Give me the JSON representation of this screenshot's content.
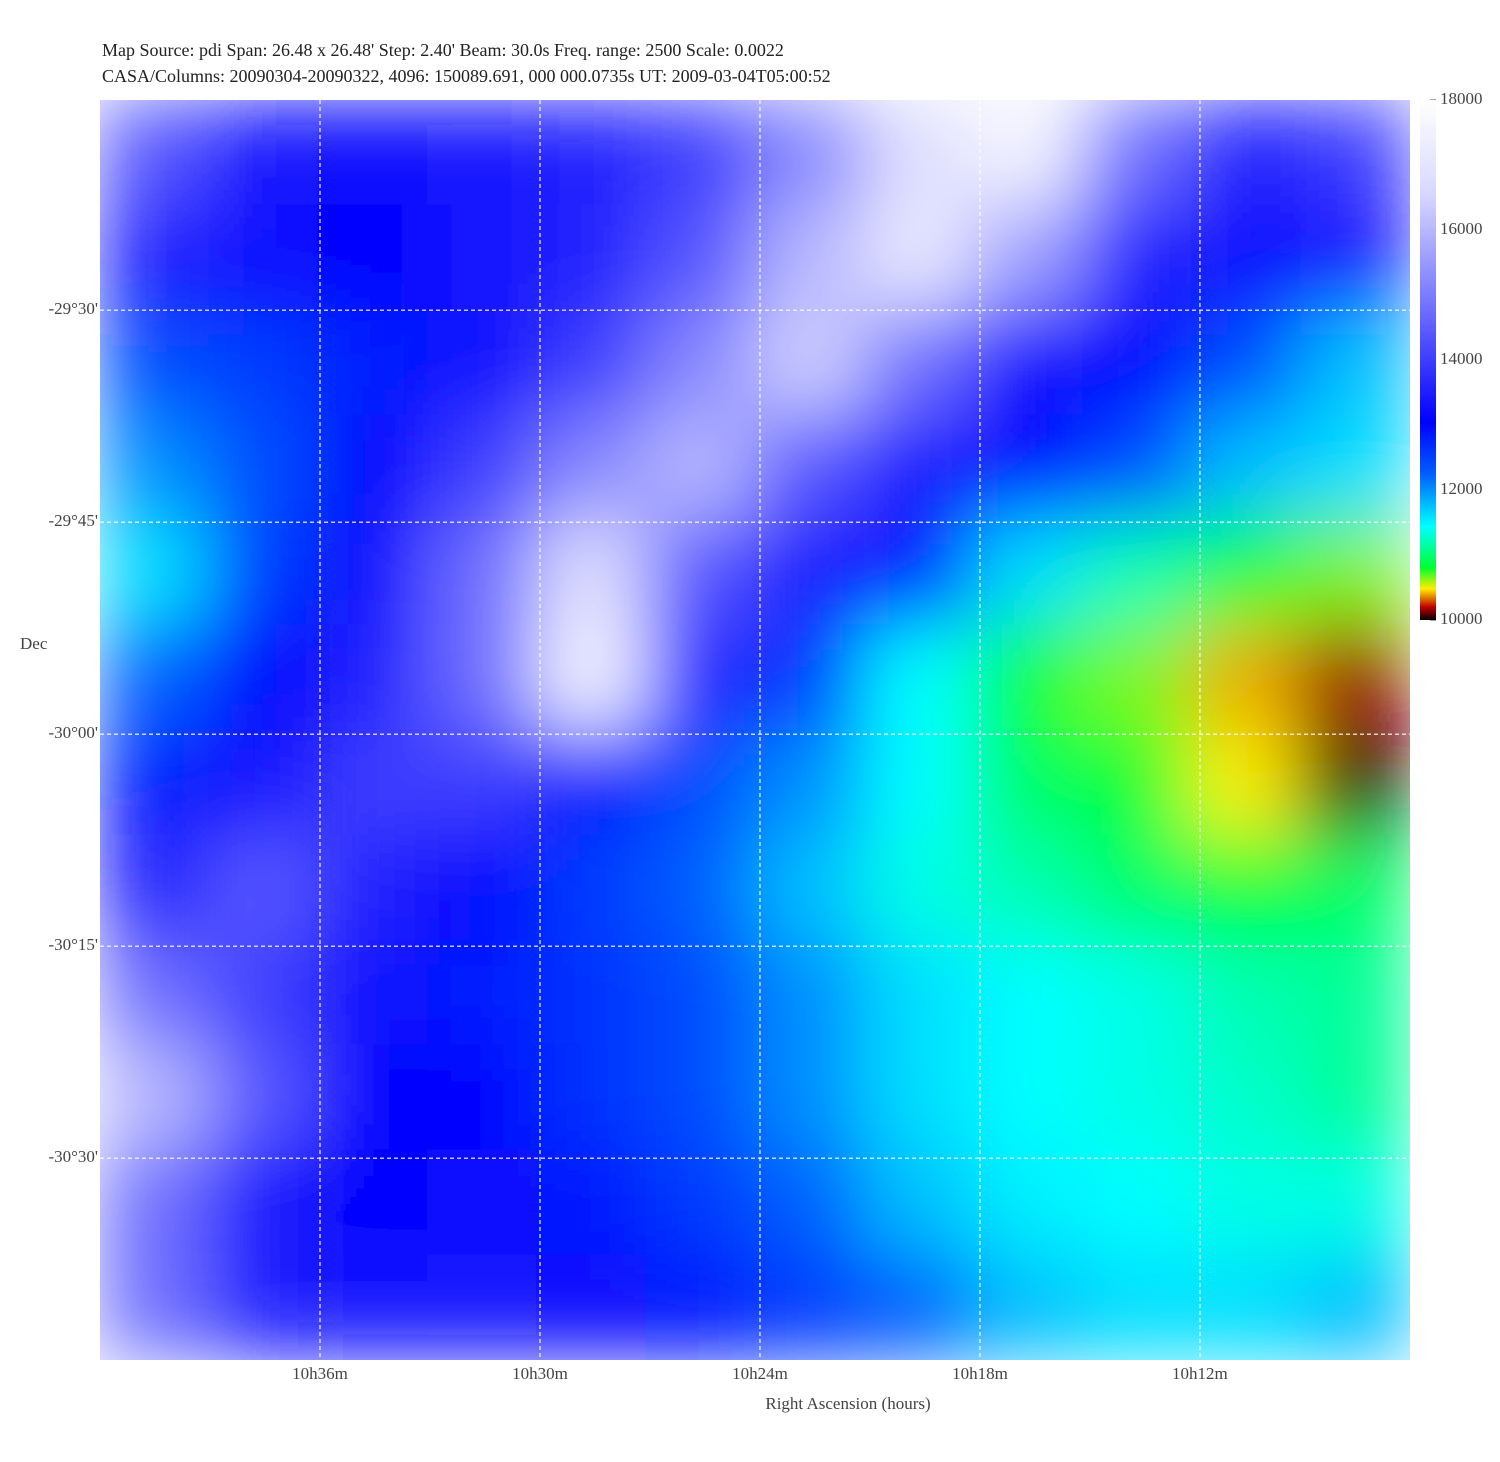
{
  "chart_data": {
    "type": "heatmap",
    "title": "Map Source: pdi     Span: 26.48 x 26.48'     Step: 2.40'     Beam: 30.0s     Freq. range: 2500     Scale: 0.0022",
    "subtitle": "CASA/Columns: 20090304-20090322, 4096: 150089.691, 000 000.0735s    UT: 2009-03-04T05:00:52",
    "x_label": "Right Ascension (hours)",
    "y_label": "Dec",
    "xlim": [
      10.7,
      10.1045
    ],
    "ylim": [
      -30.738,
      -29.252
    ],
    "xticks": [
      {
        "value": 10.6,
        "label": "10h36m"
      },
      {
        "value": 10.5,
        "label": "10h30m"
      },
      {
        "value": 10.4,
        "label": "10h24m"
      },
      {
        "value": 10.3,
        "label": "10h18m"
      },
      {
        "value": 10.2,
        "label": "10h12m"
      }
    ],
    "yticks": [
      {
        "value": -29.5,
        "label": "-29°30'"
      },
      {
        "value": -29.75,
        "label": "-29°45'"
      },
      {
        "value": -30.0,
        "label": "-30°00'"
      },
      {
        "value": -30.25,
        "label": "-30°15'"
      },
      {
        "value": -30.5,
        "label": "-30°30'"
      }
    ],
    "grid": true,
    "clim": [
      10000,
      18000
    ],
    "cticks": [
      10000,
      12000,
      14000,
      16000,
      18000
    ],
    "colormap": [
      [
        "#000000",
        0
      ],
      [
        "#c00000",
        0.025
      ],
      [
        "#ffee00",
        0.06
      ],
      [
        "#00ff30",
        0.1
      ],
      [
        "#00ffff",
        0.18
      ],
      [
        "#0060ff",
        0.28
      ],
      [
        "#0000ff",
        0.38
      ],
      [
        "#7070ff",
        0.6
      ],
      [
        "#d8d8ff",
        0.82
      ],
      [
        "#ffffff",
        1
      ]
    ],
    "z": [
      [
        14400,
        13360,
        13200,
        13360,
        13600,
        14000,
        15200,
        16800,
        17600,
        14800,
        13600,
        14000
      ],
      [
        13600,
        13200,
        13040,
        13360,
        13600,
        14400,
        16000,
        17200,
        15600,
        13600,
        13200,
        13360
      ],
      [
        12400,
        12560,
        12800,
        13200,
        14000,
        15200,
        16400,
        14800,
        13200,
        13040,
        12400,
        11760
      ],
      [
        12000,
        12400,
        13040,
        14000,
        15200,
        16000,
        14400,
        13360,
        13040,
        12400,
        11760,
        11600
      ],
      [
        11600,
        12560,
        13200,
        14800,
        16800,
        14400,
        13360,
        12800,
        11600,
        11200,
        10800,
        10640
      ],
      [
        12240,
        13040,
        13600,
        14800,
        17600,
        13600,
        12560,
        11440,
        10800,
        10640,
        10400,
        10160
      ],
      [
        12800,
        13360,
        14000,
        14000,
        12800,
        12400,
        12000,
        11440,
        10960,
        10800,
        10480,
        10000
      ],
      [
        13600,
        14400,
        13600,
        13040,
        12560,
        12240,
        11760,
        11360,
        11200,
        10960,
        10800,
        10960
      ],
      [
        14800,
        14000,
        13200,
        12800,
        12640,
        12400,
        12000,
        11600,
        11440,
        11360,
        11200,
        11120
      ],
      [
        16000,
        14400,
        13040,
        13040,
        12640,
        12400,
        12000,
        11600,
        11440,
        11360,
        11280,
        11120
      ],
      [
        14800,
        13360,
        13040,
        13200,
        12880,
        12560,
        12240,
        11760,
        11520,
        11440,
        11360,
        11360
      ],
      [
        14800,
        13600,
        13360,
        13360,
        13200,
        12880,
        12560,
        12240,
        11760,
        11600,
        11600,
        11760
      ]
    ]
  }
}
